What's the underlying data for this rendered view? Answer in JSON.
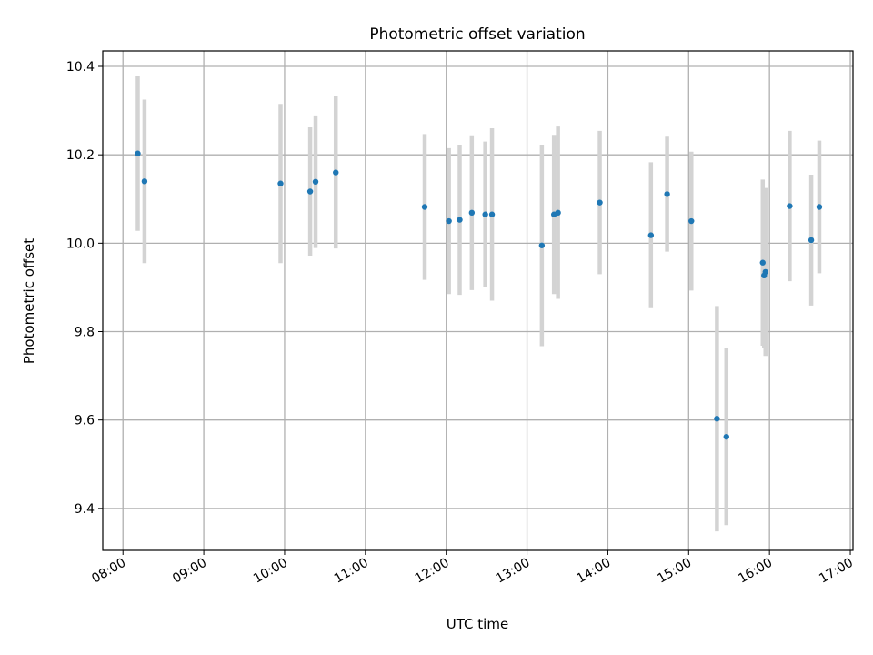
{
  "chart_data": {
    "type": "scatter",
    "title": "Photometric offset variation",
    "xlabel": "UTC time",
    "ylabel": "Photometric offset",
    "xlim": [
      "07:45",
      "17:02"
    ],
    "ylim": [
      9.305,
      10.435
    ],
    "x_ticks": [
      "08:00",
      "09:00",
      "10:00",
      "11:00",
      "12:00",
      "13:00",
      "14:00",
      "15:00",
      "16:00",
      "17:00"
    ],
    "y_ticks": [
      "9.4",
      "9.6",
      "9.8",
      "10.0",
      "10.2",
      "10.4"
    ],
    "grid": true,
    "colors": {
      "point": "#1f77b4",
      "errorbar": "#d3d3d3",
      "grid": "#b0b0b0"
    },
    "points": [
      {
        "x": "08:11",
        "y": 10.203,
        "err": 0.175
      },
      {
        "x": "08:16",
        "y": 10.14,
        "err": 0.185
      },
      {
        "x": "09:57",
        "y": 10.135,
        "err": 0.18
      },
      {
        "x": "10:19",
        "y": 10.117,
        "err": 0.145
      },
      {
        "x": "10:23",
        "y": 10.139,
        "err": 0.15
      },
      {
        "x": "10:38",
        "y": 10.16,
        "err": 0.172
      },
      {
        "x": "11:44",
        "y": 10.082,
        "err": 0.165
      },
      {
        "x": "12:02",
        "y": 10.05,
        "err": 0.165
      },
      {
        "x": "12:10",
        "y": 10.053,
        "err": 0.17
      },
      {
        "x": "12:19",
        "y": 10.069,
        "err": 0.175
      },
      {
        "x": "12:29",
        "y": 10.065,
        "err": 0.165
      },
      {
        "x": "12:34",
        "y": 10.065,
        "err": 0.195
      },
      {
        "x": "13:11",
        "y": 9.995,
        "err": 0.228
      },
      {
        "x": "13:20",
        "y": 10.065,
        "err": 0.18
      },
      {
        "x": "13:23",
        "y": 10.069,
        "err": 0.195
      },
      {
        "x": "13:54",
        "y": 10.092,
        "err": 0.162
      },
      {
        "x": "14:32",
        "y": 10.018,
        "err": 0.165
      },
      {
        "x": "14:44",
        "y": 10.111,
        "err": 0.13
      },
      {
        "x": "15:02",
        "y": 10.05,
        "err": 0.157
      },
      {
        "x": "15:21",
        "y": 9.603,
        "err": 0.255
      },
      {
        "x": "15:28",
        "y": 9.562,
        "err": 0.2
      },
      {
        "x": "15:55",
        "y": 9.956,
        "err": 0.188
      },
      {
        "x": "15:56",
        "y": 9.927,
        "err": 0.165
      },
      {
        "x": "15:57",
        "y": 9.935,
        "err": 0.19
      },
      {
        "x": "16:15",
        "y": 10.084,
        "err": 0.17
      },
      {
        "x": "16:31",
        "y": 10.007,
        "err": 0.148
      },
      {
        "x": "16:37",
        "y": 10.082,
        "err": 0.15
      }
    ]
  }
}
